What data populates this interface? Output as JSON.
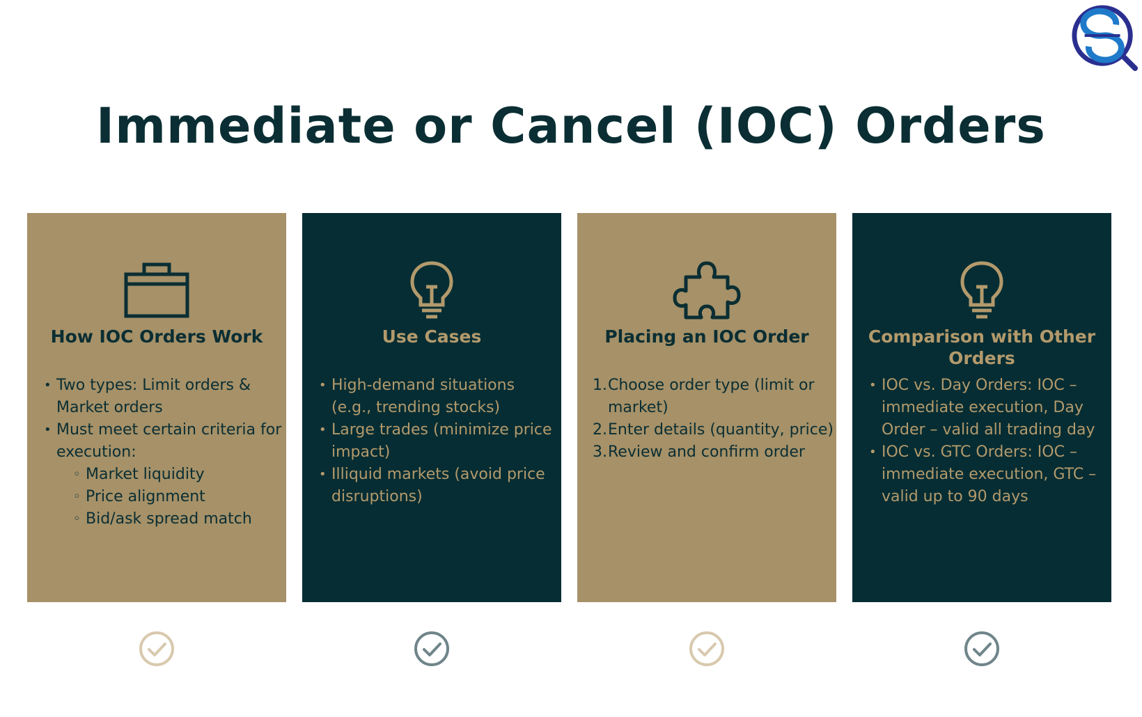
{
  "title": "Immediate or Cancel (IOC) Orders",
  "colors": {
    "navy": "#062d33",
    "tan": "#a69168",
    "gold": "#b39a6c"
  },
  "cards": [
    {
      "icon": "briefcase-icon",
      "heading": "How IOC Orders Work",
      "items": [
        "Two types: Limit orders & Market orders",
        "Must meet certain criteria for execution:"
      ],
      "subitems": [
        "Market liquidity",
        "Price alignment",
        "Bid/ask spread match"
      ]
    },
    {
      "icon": "lightbulb-icon",
      "heading": "Use Cases",
      "items": [
        "High-demand situations (e.g., trending stocks)",
        "Large trades (minimize price impact)",
        "Illiquid markets (avoid price disruptions)"
      ]
    },
    {
      "icon": "puzzle-piece-icon",
      "heading": "Placing an IOC Order",
      "items": [
        "Choose order type (limit or market)",
        "Enter details (quantity, price)",
        "Review and confirm order"
      ]
    },
    {
      "icon": "lightbulb-icon",
      "heading": "Comparison with Other Orders",
      "items": [
        "IOC vs. Day Orders: IOC – immediate execution, Day Order – valid all trading day",
        "IOC vs. GTC Orders: IOC – immediate execution, GTC – valid up to 90 days"
      ]
    }
  ]
}
